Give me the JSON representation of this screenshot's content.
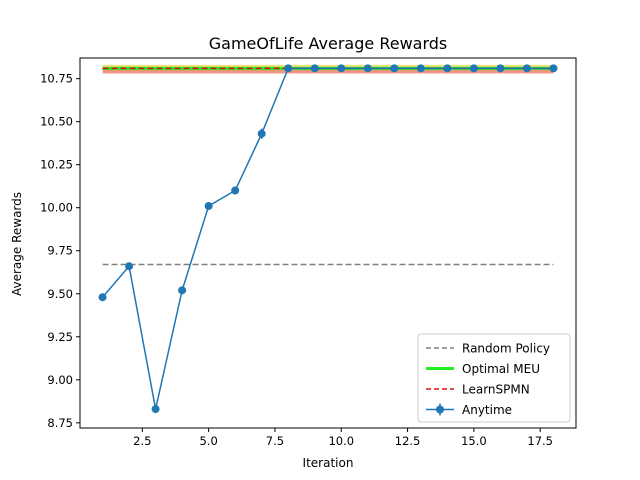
{
  "chart_data": {
    "type": "line",
    "title": "GameOfLife Average Rewards",
    "xlabel": "Iteration",
    "ylabel": "Average Rewards",
    "xlim": [
      0.15,
      18.85
    ],
    "ylim": [
      8.72,
      10.87
    ],
    "x_ticks": [
      2.5,
      5.0,
      7.5,
      10.0,
      12.5,
      15.0,
      17.5
    ],
    "x_tick_labels": [
      "2.5",
      "5.0",
      "7.5",
      "10.0",
      "12.5",
      "15.0",
      "17.5"
    ],
    "y_ticks": [
      8.75,
      9.0,
      9.25,
      9.5,
      9.75,
      10.0,
      10.25,
      10.5,
      10.75
    ],
    "y_tick_labels": [
      "8.75",
      "9.00",
      "9.25",
      "9.50",
      "9.75",
      "10.00",
      "10.25",
      "10.50",
      "10.75"
    ],
    "grid": false,
    "legend_position": "bottom-right",
    "series": [
      {
        "name": "Random Policy",
        "style": "dashed",
        "color": "#808080",
        "x": [
          1,
          18
        ],
        "y": [
          9.67,
          9.67
        ]
      },
      {
        "name": "Optimal MEU",
        "style": "solid-thick",
        "color": "#22ee22",
        "band_color": "#e8dc60",
        "x": [
          1,
          18
        ],
        "y": [
          10.81,
          10.81
        ],
        "band": [
          10.79,
          10.83
        ]
      },
      {
        "name": "LearnSPMN",
        "style": "dashed",
        "color": "#dd1111",
        "band_color": "#ee8877",
        "x": [
          1,
          18
        ],
        "y": [
          10.81,
          10.81
        ],
        "band": [
          10.78,
          10.81
        ]
      },
      {
        "name": "Anytime",
        "style": "line-markers-errorbars",
        "color": "#1f77b4",
        "x": [
          1,
          2,
          3,
          4,
          5,
          6,
          7,
          8,
          9,
          10,
          11,
          12,
          13,
          14,
          15,
          16,
          17,
          18
        ],
        "y": [
          9.48,
          9.66,
          8.83,
          9.52,
          10.01,
          10.1,
          10.43,
          10.81,
          10.81,
          10.81,
          10.81,
          10.81,
          10.81,
          10.81,
          10.81,
          10.81,
          10.81,
          10.81
        ],
        "err": [
          0.01,
          0.01,
          0.01,
          0.01,
          0.01,
          0.01,
          0.03,
          0.01,
          0.01,
          0.01,
          0.01,
          0.01,
          0.01,
          0.01,
          0.01,
          0.01,
          0.01,
          0.01
        ]
      }
    ]
  }
}
